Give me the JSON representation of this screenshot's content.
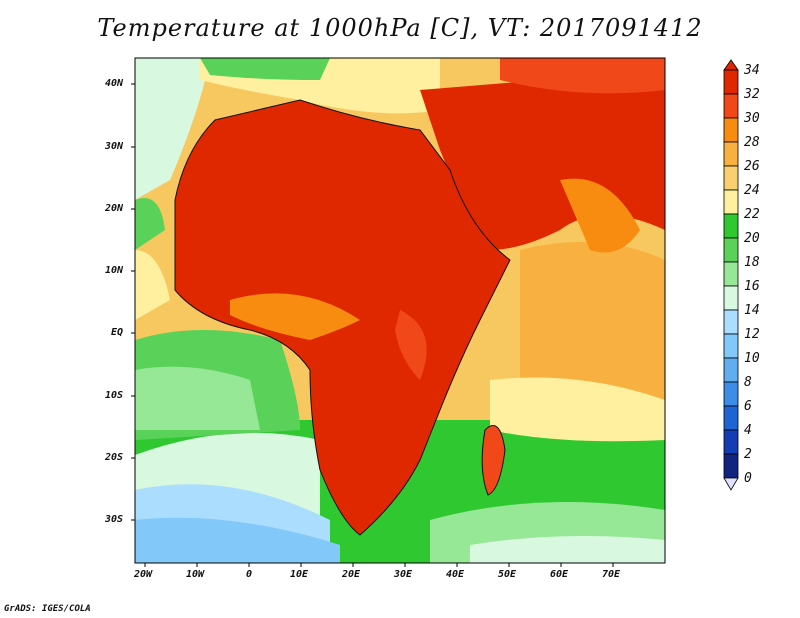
{
  "title": "Temperature at 1000hPa [C], VT: 2017091412",
  "credit": "GrADS: IGES/COLA",
  "lat_labels": [
    "40N",
    "30N",
    "20N",
    "10N",
    "EQ",
    "10S",
    "20S",
    "30S"
  ],
  "lon_labels": [
    "20W",
    "10W",
    "0",
    "10E",
    "20E",
    "30E",
    "40E",
    "50E",
    "60E",
    "70E"
  ],
  "colorbar": {
    "levels": [
      "34",
      "32",
      "30",
      "28",
      "26",
      "24",
      "22",
      "20",
      "18",
      "16",
      "14",
      "12",
      "10",
      "8",
      "6",
      "4",
      "2",
      "0"
    ],
    "colors": [
      "#e02800",
      "#f04818",
      "#f88c10",
      "#f8b040",
      "#f8d070",
      "#fff0a0",
      "#30c830",
      "#5ad25a",
      "#96e896",
      "#d8f8e0",
      "#aaddff",
      "#82c8f8",
      "#60aef0",
      "#3c8ce8",
      "#1e64d2",
      "#143cb4",
      "#102480",
      "#e0e0ff"
    ]
  },
  "palette": {
    "hot": "#e02800",
    "warm": "#f88c10",
    "mild": "#fff0a0",
    "green": "#30c830",
    "cool": "#aaddff",
    "cold": "#60aef0"
  }
}
